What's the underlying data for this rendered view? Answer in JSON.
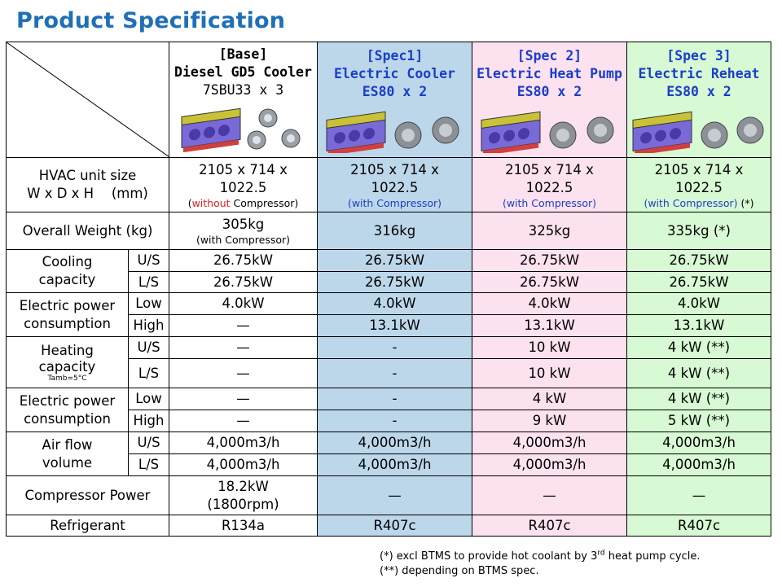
{
  "title": "Product Specification",
  "headers": {
    "base": {
      "tag": "[Base]",
      "line1": "Diesel GD5 Cooler",
      "line2": "7SBU33 x 3"
    },
    "spec1": {
      "tag": "[Spec1]",
      "line1": "Electric Cooler",
      "line2": "ES80 x 2"
    },
    "spec2": {
      "tag": "[Spec 2]",
      "line1": "Electric Heat Pump",
      "line2": "ES80 x 2"
    },
    "spec3": {
      "tag": "[Spec 3]",
      "line1": "Electric Reheat",
      "line2": "ES80 x 2"
    }
  },
  "colors": {
    "title": "#1f6fb8",
    "spec1_bg": "#bdd7ea",
    "spec2_bg": "#fce1ef",
    "spec3_bg": "#d7f9d3",
    "spec_text": "#1a3ec8",
    "without_red": "#e31e1e"
  },
  "rows": {
    "hvac": {
      "label1": "HVAC unit size",
      "label2": "W x D x H 　(mm)",
      "dim_line1": "2105 x 714 x",
      "dim_line2": "1022.5",
      "base_note_open": "(",
      "base_note_red": "without",
      "base_note_rest": " Compressor)",
      "with_note": "(with Compressor)",
      "spec3_star": " (*)"
    },
    "weight": {
      "label": "Overall Weight (kg)",
      "base": "305kg",
      "base_note": "(with Compressor)",
      "spec1": "316kg",
      "spec2": "325kg",
      "spec3": "335kg (*)"
    },
    "cooling": {
      "label1": "Cooling",
      "label2": "capacity",
      "us": {
        "sub": "U/S",
        "base": "26.75kW",
        "spec1": "26.75kW",
        "spec2": "26.75kW",
        "spec3": "26.75kW"
      },
      "ls": {
        "sub": "L/S",
        "base": "26.75kW",
        "spec1": "26.75kW",
        "spec2": "26.75kW",
        "spec3": "26.75kW"
      }
    },
    "elec_cool": {
      "label1": "Electric power",
      "label2": "consumption",
      "low": {
        "sub": "Low",
        "base": "4.0kW",
        "spec1": "4.0kW",
        "spec2": "4.0kW",
        "spec3": "4.0kW"
      },
      "high": {
        "sub": "High",
        "base": "—",
        "spec1": "13.1kW",
        "spec2": "13.1kW",
        "spec3": "13.1kW"
      }
    },
    "heating": {
      "label1": "Heating",
      "label2": "capacity",
      "label3": "Tamb=5°C",
      "us": {
        "sub": "U/S",
        "base": "—",
        "spec1": "-",
        "spec2": "10 kW",
        "spec3": "4 kW (**)"
      },
      "ls": {
        "sub": "L/S",
        "base": "—",
        "spec1": "-",
        "spec2": "10 kW",
        "spec3": "4 kW (**)"
      }
    },
    "elec_heat": {
      "label1": "Electric power",
      "label2": "consumption",
      "low": {
        "sub": "Low",
        "base": "—",
        "spec1": "-",
        "spec2": "4 kW",
        "spec3": "4 kW (**)"
      },
      "high": {
        "sub": "High",
        "base": "—",
        "spec1": "-",
        "spec2": "9 kW",
        "spec3": "5 kW (**)"
      }
    },
    "airflow": {
      "label1": "Air flow",
      "label2": "volume",
      "us": {
        "sub": "U/S",
        "base": "4,000m3/h",
        "spec1": "4,000m3/h",
        "spec2": "4,000m3/h",
        "spec3": "4,000m3/h"
      },
      "ls": {
        "sub": "L/S",
        "base": "4,000m3/h",
        "spec1": "4,000m3/h",
        "spec2": "4,000m3/h",
        "spec3": "4,000m3/h"
      }
    },
    "compressor": {
      "label": "Compressor Power",
      "base_line1": "18.2kW",
      "base_line2": "(1800rpm)",
      "spec1": "—",
      "spec2": "—",
      "spec3": "—"
    },
    "refrigerant": {
      "label": "Refrigerant",
      "base": "R134a",
      "spec1": "R407c",
      "spec2": "R407c",
      "spec3": "R407c"
    }
  },
  "notes": {
    "note1_a": "(*) excl BTMS to provide hot coolant by 3",
    "note1_sup": "rd",
    "note1_b": " heat pump cycle.",
    "note2": "(**) depending on BTMS spec."
  }
}
